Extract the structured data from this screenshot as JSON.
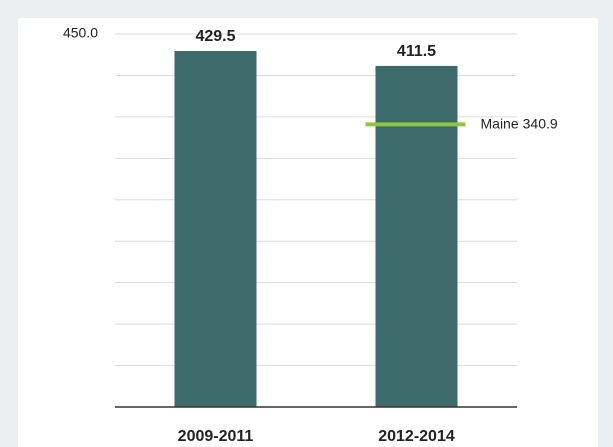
{
  "chart_data": {
    "type": "bar",
    "categories": [
      "2009-2011",
      "2012-2014"
    ],
    "values": [
      429.5,
      411.5
    ],
    "color": "#3d6a6a",
    "ylim": [
      0,
      450
    ],
    "yticks": [
      {
        "value": 0,
        "label": null
      },
      {
        "value": 50,
        "label": null
      },
      {
        "value": 100,
        "label": null
      },
      {
        "value": 150,
        "label": null
      },
      {
        "value": 200,
        "label": null
      },
      {
        "value": 250,
        "label": null
      },
      {
        "value": 300,
        "label": null
      },
      {
        "value": 350,
        "label": null
      },
      {
        "value": 400,
        "label": null
      },
      {
        "value": 450,
        "label": "450.0"
      }
    ],
    "grid": true,
    "reference": {
      "label": "Maine",
      "value": 340.9,
      "color": "#8dc63f"
    }
  }
}
